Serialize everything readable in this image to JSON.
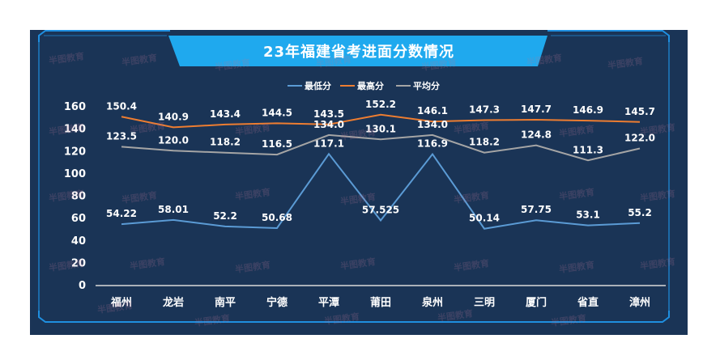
{
  "title": "23年福建省考进面分数情况",
  "colors": {
    "panel_bg": "#1a3456",
    "frame": "#1f8fe0",
    "title_bar": "#1fa9ee",
    "min": "#5b9bd5",
    "max": "#ed7d31",
    "avg": "#a5a5a5",
    "text": "#ffffff"
  },
  "chart_data": {
    "type": "line",
    "categories": [
      "福州",
      "龙岩",
      "南平",
      "宁德",
      "平潭",
      "莆田",
      "泉州",
      "三明",
      "厦门",
      "省直",
      "漳州"
    ],
    "series": [
      {
        "name": "最低分",
        "color": "#5b9bd5",
        "values": [
          54.22,
          58.01,
          52.2,
          50.68,
          117.1,
          57.525,
          116.9,
          50.14,
          57.75,
          53.1,
          55.2
        ],
        "labels": [
          "54.22",
          "58.01",
          "52.2",
          "50.68",
          "117.1",
          "57.525",
          "116.9",
          "50.14",
          "57.75",
          "53.1",
          "55.2"
        ]
      },
      {
        "name": "最高分",
        "color": "#ed7d31",
        "values": [
          150.4,
          140.9,
          143.4,
          144.5,
          143.5,
          152.2,
          146.1,
          147.3,
          147.7,
          146.9,
          145.7
        ],
        "labels": [
          "150.4",
          "140.9",
          "143.4",
          "144.5",
          "143.5",
          "152.2",
          "146.1",
          "147.3",
          "147.7",
          "146.9",
          "145.7"
        ]
      },
      {
        "name": "平均分",
        "color": "#a5a5a5",
        "values": [
          123.5,
          120.0,
          118.2,
          116.5,
          134.0,
          130.1,
          134.0,
          118.2,
          124.8,
          111.3,
          122.0
        ],
        "labels": [
          "123.5",
          "120.0",
          "118.2",
          "116.5",
          "134.0",
          "130.1",
          "134.0",
          "118.2",
          "124.8",
          "111.3",
          "122.0"
        ]
      }
    ],
    "yticks": [
      "0",
      "20",
      "40",
      "60",
      "80",
      "100",
      "120",
      "140",
      "160"
    ],
    "ylim": [
      0,
      160
    ],
    "grid": false,
    "legend_position": "top-center"
  },
  "watermark_text": "半图教育"
}
